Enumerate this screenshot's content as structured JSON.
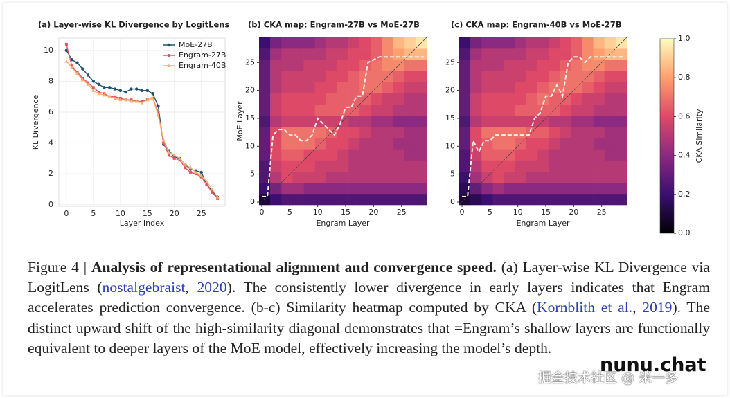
{
  "chart_data": [
    {
      "type": "line",
      "title": "(a) Layer-wise KL Divergence by LogitLens",
      "xlabel": "Layer Index",
      "ylabel": "KL Divergence",
      "x": [
        0,
        1,
        2,
        3,
        4,
        5,
        6,
        7,
        8,
        9,
        10,
        11,
        12,
        13,
        14,
        15,
        16,
        17,
        18,
        19,
        20,
        21,
        22,
        23,
        24,
        25,
        26,
        27,
        28
      ],
      "series": [
        {
          "name": "MoE-27B",
          "color": "#1f4e6e",
          "marker": "circle",
          "values": [
            10,
            9.4,
            9.2,
            8.8,
            8.4,
            8.0,
            7.8,
            7.6,
            7.6,
            7.5,
            7.4,
            7.3,
            7.5,
            7.5,
            7.4,
            7.4,
            7.2,
            6.4,
            3.9,
            3.5,
            3.1,
            3.0,
            2.6,
            2.3,
            2.2,
            2.1,
            1.3,
            0.9,
            0.5
          ]
        },
        {
          "name": "Engram-27B",
          "color": "#e0546a",
          "marker": "square",
          "values": [
            10.4,
            9.0,
            8.6,
            8.2,
            7.9,
            7.6,
            7.3,
            7.2,
            7.0,
            7.0,
            6.9,
            6.8,
            6.8,
            6.7,
            6.7,
            6.8,
            6.9,
            6.0,
            4.0,
            3.2,
            3.0,
            2.9,
            2.4,
            2.1,
            2.0,
            1.8,
            1.3,
            0.8,
            0.4
          ]
        },
        {
          "name": "Engram-40B",
          "color": "#f5b06a",
          "marker": "triangle",
          "values": [
            9.3,
            8.9,
            8.5,
            8.1,
            7.8,
            7.4,
            7.2,
            7.1,
            7.0,
            6.9,
            6.8,
            6.8,
            6.7,
            6.7,
            6.6,
            6.8,
            6.9,
            5.8,
            4.2,
            3.4,
            3.2,
            3.0,
            2.6,
            2.4,
            2.1,
            1.9,
            1.5,
            1.0,
            0.5
          ]
        }
      ],
      "xlim": [
        -1.4,
        29.4
      ],
      "ylim": [
        -0.1,
        10.8
      ],
      "xticks": [
        0,
        5,
        10,
        15,
        20,
        25
      ],
      "yticks": [
        0,
        2,
        4,
        6,
        8,
        10
      ],
      "grid": true,
      "legend": "upper right"
    },
    {
      "type": "heatmap",
      "title": "(b) CKA map: Engram-27B vs MoE-27B",
      "xlabel": "Engram Layer",
      "ylabel": "MoE Layer",
      "xlim": [
        -0.5,
        29.5
      ],
      "ylim": [
        -0.5,
        29.5
      ],
      "xticks": [
        0,
        5,
        10,
        15,
        20,
        25
      ],
      "yticks": [
        0,
        5,
        10,
        15,
        20,
        25
      ],
      "xbins": [
        -0.5,
        1.5,
        3.5,
        5.5,
        7.5,
        9.5,
        11.5,
        13.5,
        15.5,
        17.5,
        19.5,
        21.5,
        23.5,
        25.5,
        27.5,
        29.5
      ],
      "ybins": [
        -0.5,
        1.5,
        3.5,
        5.5,
        7.5,
        9.5,
        11.5,
        13.5,
        15.5,
        17.5,
        19.5,
        21.5,
        23.5,
        25.5,
        27.5,
        29.5
      ],
      "z": [
        [
          0.1,
          0.2,
          0.25,
          0.25,
          0.25,
          0.25,
          0.25,
          0.25,
          0.25,
          0.25,
          0.25,
          0.25,
          0.25,
          0.25,
          0.25
        ],
        [
          0.2,
          0.35,
          0.45,
          0.45,
          0.4,
          0.4,
          0.4,
          0.4,
          0.4,
          0.4,
          0.4,
          0.4,
          0.4,
          0.4,
          0.4
        ],
        [
          0.25,
          0.5,
          0.6,
          0.55,
          0.55,
          0.55,
          0.5,
          0.5,
          0.5,
          0.5,
          0.5,
          0.5,
          0.5,
          0.5,
          0.5
        ],
        [
          0.25,
          0.55,
          0.6,
          0.6,
          0.6,
          0.55,
          0.55,
          0.55,
          0.5,
          0.5,
          0.5,
          0.5,
          0.5,
          0.5,
          0.5
        ],
        [
          0.3,
          0.6,
          0.65,
          0.65,
          0.6,
          0.6,
          0.6,
          0.55,
          0.5,
          0.5,
          0.5,
          0.5,
          0.5,
          0.45,
          0.45
        ],
        [
          0.3,
          0.6,
          0.7,
          0.7,
          0.7,
          0.65,
          0.6,
          0.6,
          0.55,
          0.5,
          0.5,
          0.5,
          0.45,
          0.45,
          0.45
        ],
        [
          0.3,
          0.6,
          0.7,
          0.7,
          0.7,
          0.7,
          0.65,
          0.6,
          0.6,
          0.55,
          0.5,
          0.5,
          0.5,
          0.45,
          0.45
        ],
        [
          0.25,
          0.5,
          0.55,
          0.55,
          0.55,
          0.55,
          0.55,
          0.55,
          0.5,
          0.5,
          0.45,
          0.45,
          0.4,
          0.4,
          0.4
        ],
        [
          0.3,
          0.55,
          0.6,
          0.6,
          0.6,
          0.65,
          0.65,
          0.65,
          0.65,
          0.6,
          0.55,
          0.55,
          0.5,
          0.5,
          0.5
        ],
        [
          0.3,
          0.55,
          0.6,
          0.6,
          0.6,
          0.6,
          0.65,
          0.65,
          0.65,
          0.65,
          0.6,
          0.55,
          0.55,
          0.5,
          0.5
        ],
        [
          0.3,
          0.5,
          0.55,
          0.55,
          0.55,
          0.6,
          0.6,
          0.65,
          0.65,
          0.7,
          0.7,
          0.65,
          0.6,
          0.55,
          0.55
        ],
        [
          0.3,
          0.5,
          0.55,
          0.55,
          0.55,
          0.55,
          0.6,
          0.6,
          0.65,
          0.7,
          0.7,
          0.7,
          0.65,
          0.6,
          0.6
        ],
        [
          0.3,
          0.5,
          0.5,
          0.5,
          0.55,
          0.55,
          0.55,
          0.6,
          0.6,
          0.65,
          0.7,
          0.75,
          0.75,
          0.7,
          0.7
        ],
        [
          0.25,
          0.45,
          0.5,
          0.5,
          0.5,
          0.5,
          0.55,
          0.55,
          0.6,
          0.6,
          0.65,
          0.75,
          0.8,
          0.85,
          0.85
        ],
        [
          0.2,
          0.35,
          0.4,
          0.4,
          0.4,
          0.45,
          0.5,
          0.5,
          0.55,
          0.6,
          0.65,
          0.75,
          0.85,
          0.9,
          0.95
        ]
      ],
      "path": {
        "x": [
          0,
          1,
          2,
          3,
          4,
          5,
          6,
          7,
          8,
          9,
          10,
          11,
          12,
          13,
          14,
          15,
          16,
          17,
          18,
          19,
          20,
          21,
          22,
          23,
          24,
          25,
          26,
          27,
          28,
          29
        ],
        "values": [
          1,
          1,
          12,
          13,
          13,
          12,
          12,
          11,
          11,
          12,
          15,
          14,
          13,
          12,
          14,
          17,
          17,
          19,
          19,
          25,
          25.5,
          26,
          26,
          26,
          26,
          26,
          26,
          26,
          26,
          26
        ]
      }
    },
    {
      "type": "heatmap",
      "title": "(c) CKA map: Engram-40B vs MoE-27B",
      "xlabel": "Engram Layer",
      "xlim": [
        -0.5,
        29.5
      ],
      "ylim": [
        -0.5,
        29.5
      ],
      "xticks": [
        0,
        5,
        10,
        15,
        20,
        25
      ],
      "yticks": [
        0,
        5,
        10,
        15,
        20,
        25
      ],
      "xbins": [
        -0.5,
        1.5,
        3.5,
        5.5,
        7.5,
        9.5,
        11.5,
        13.5,
        15.5,
        17.5,
        19.5,
        21.5,
        23.5,
        25.5,
        27.5,
        29.5
      ],
      "ybins": [
        -0.5,
        1.5,
        3.5,
        5.5,
        7.5,
        9.5,
        11.5,
        13.5,
        15.5,
        17.5,
        19.5,
        21.5,
        23.5,
        25.5,
        27.5,
        29.5
      ],
      "z": [
        [
          0.1,
          0.15,
          0.2,
          0.25,
          0.25,
          0.25,
          0.25,
          0.25,
          0.25,
          0.25,
          0.25,
          0.25,
          0.25,
          0.25,
          0.25
        ],
        [
          0.15,
          0.3,
          0.4,
          0.45,
          0.4,
          0.4,
          0.4,
          0.4,
          0.4,
          0.4,
          0.4,
          0.4,
          0.4,
          0.4,
          0.4
        ],
        [
          0.2,
          0.45,
          0.55,
          0.6,
          0.55,
          0.55,
          0.5,
          0.5,
          0.5,
          0.5,
          0.5,
          0.5,
          0.5,
          0.5,
          0.5
        ],
        [
          0.25,
          0.5,
          0.6,
          0.6,
          0.6,
          0.55,
          0.55,
          0.55,
          0.5,
          0.5,
          0.5,
          0.5,
          0.5,
          0.5,
          0.5
        ],
        [
          0.25,
          0.55,
          0.65,
          0.65,
          0.65,
          0.6,
          0.6,
          0.55,
          0.5,
          0.5,
          0.5,
          0.5,
          0.5,
          0.45,
          0.45
        ],
        [
          0.3,
          0.6,
          0.65,
          0.7,
          0.7,
          0.65,
          0.6,
          0.6,
          0.55,
          0.5,
          0.5,
          0.5,
          0.45,
          0.45,
          0.45
        ],
        [
          0.3,
          0.6,
          0.7,
          0.7,
          0.7,
          0.7,
          0.65,
          0.65,
          0.6,
          0.55,
          0.5,
          0.5,
          0.5,
          0.45,
          0.45
        ],
        [
          0.25,
          0.5,
          0.55,
          0.55,
          0.55,
          0.55,
          0.55,
          0.55,
          0.5,
          0.5,
          0.45,
          0.45,
          0.4,
          0.4,
          0.4
        ],
        [
          0.3,
          0.55,
          0.6,
          0.6,
          0.6,
          0.65,
          0.65,
          0.65,
          0.65,
          0.6,
          0.55,
          0.55,
          0.5,
          0.5,
          0.5
        ],
        [
          0.3,
          0.55,
          0.6,
          0.6,
          0.6,
          0.6,
          0.65,
          0.7,
          0.65,
          0.65,
          0.6,
          0.55,
          0.55,
          0.5,
          0.5
        ],
        [
          0.3,
          0.5,
          0.55,
          0.55,
          0.55,
          0.6,
          0.6,
          0.65,
          0.7,
          0.7,
          0.7,
          0.65,
          0.6,
          0.55,
          0.55
        ],
        [
          0.3,
          0.5,
          0.55,
          0.55,
          0.55,
          0.55,
          0.6,
          0.6,
          0.65,
          0.7,
          0.7,
          0.7,
          0.65,
          0.6,
          0.6
        ],
        [
          0.3,
          0.5,
          0.5,
          0.5,
          0.55,
          0.55,
          0.55,
          0.6,
          0.6,
          0.65,
          0.7,
          0.75,
          0.75,
          0.7,
          0.7
        ],
        [
          0.25,
          0.45,
          0.5,
          0.5,
          0.5,
          0.5,
          0.55,
          0.55,
          0.6,
          0.6,
          0.65,
          0.75,
          0.8,
          0.85,
          0.85
        ],
        [
          0.2,
          0.35,
          0.4,
          0.4,
          0.4,
          0.45,
          0.5,
          0.5,
          0.55,
          0.6,
          0.65,
          0.75,
          0.85,
          0.9,
          0.95
        ]
      ],
      "path": {
        "x": [
          0,
          1,
          2,
          3,
          4,
          5,
          6,
          7,
          8,
          9,
          10,
          11,
          12,
          13,
          14,
          15,
          16,
          17,
          18,
          19,
          20,
          21,
          22,
          23,
          24,
          25,
          26,
          27,
          28,
          29
        ],
        "values": [
          1,
          1,
          11,
          9,
          11,
          11,
          12,
          12,
          12,
          12,
          12,
          12,
          12,
          15,
          16,
          19,
          19,
          21,
          19,
          25,
          26,
          26,
          25,
          26,
          26,
          26,
          26,
          26,
          26,
          26
        ]
      }
    }
  ],
  "colorbar": {
    "label": "CKA Similarity",
    "lim": [
      0,
      1
    ],
    "ticks": [
      {
        "value": 0,
        "label": "0.0"
      },
      {
        "value": 0.2,
        "label": "0.2"
      },
      {
        "value": 0.4,
        "label": "0.4"
      },
      {
        "value": 0.6,
        "label": "0.6"
      },
      {
        "value": 0.8,
        "label": "0.8"
      },
      {
        "value": 1,
        "label": "1.0"
      }
    ],
    "colormap": [
      "#000004",
      "#3b0f70",
      "#8c2981",
      "#de4968",
      "#fe9f6d",
      "#fcfdbf"
    ]
  },
  "caption": {
    "label": "Figure 4 | ",
    "heading": "Analysis of representational alignment and convergence speed.",
    "segments": [
      {
        "text": " (a) Layer-wise KL Divergence via LogitLens ("
      },
      {
        "link": "nostalgebraist"
      },
      {
        "text": ", "
      },
      {
        "link": "2020"
      },
      {
        "text": "). The consistently lower divergence in early layers indicates that Engram accelerates prediction convergence. (b-c) Similarity heatmap computed by CKA ("
      },
      {
        "link": "Kornblith et al."
      },
      {
        "text": ", "
      },
      {
        "link": "2019"
      },
      {
        "text": "). The distinct upward shift of the high-similarity diagonal demonstrates that =Engram’s shallow layers are functionally equivalent to deeper layers of the MoE model, effectively increasing the model’s depth."
      }
    ]
  },
  "watermark": {
    "brand": "nunu.chat",
    "source": "掘金技术社区 @ 米一多"
  }
}
